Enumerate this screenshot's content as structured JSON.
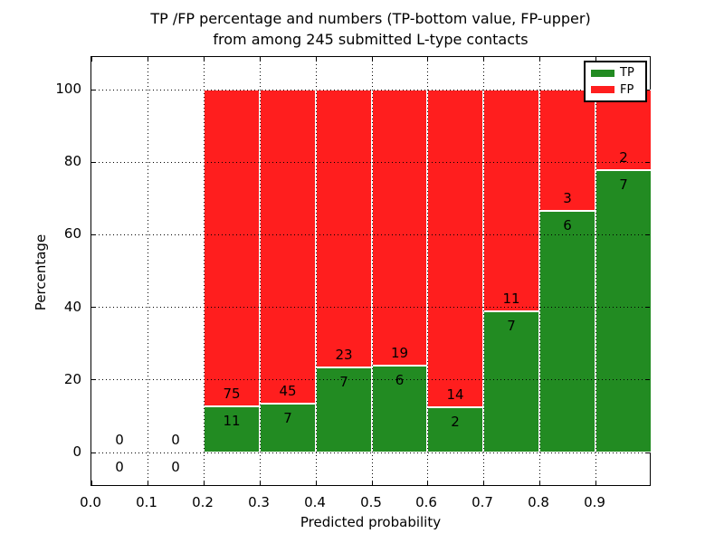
{
  "figure": {
    "title_line1": "TP /FP percentage and numbers (TP-bottom value, FP-upper)",
    "title_line2": "from among 245 submitted L-type contacts"
  },
  "chart_data": {
    "type": "bar",
    "stacked": true,
    "title": "TP /FP percentage and numbers (TP-bottom value, FP-upper) from among 245 submitted L-type contacts",
    "xlabel": "Predicted probability",
    "ylabel": "Percentage",
    "x_tick_labels": [
      "0.0",
      "0.1",
      "0.2",
      "0.3",
      "0.4",
      "0.5",
      "0.6",
      "0.7",
      "0.8",
      "0.9"
    ],
    "y_tick_values": [
      0,
      20,
      40,
      60,
      80,
      100
    ],
    "xlim": [
      0.0,
      1.0
    ],
    "ylim": [
      -9.5,
      109.3
    ],
    "grid": "dotted, both axes, drawn above bars",
    "legend_position": "upper right",
    "total_contacts": 245,
    "colors": {
      "tp": "#228b22",
      "fp": "#ff1e1e",
      "bar_edge": "#ffffff"
    },
    "legend": {
      "entries": [
        {
          "label": "TP",
          "color": "#228b22"
        },
        {
          "label": "FP",
          "color": "#ff1e1e"
        }
      ]
    },
    "bins": [
      {
        "range": [
          0.0,
          0.1
        ],
        "tp": 0,
        "fp": 0,
        "tp_pct": 0,
        "fp_pct": 0
      },
      {
        "range": [
          0.1,
          0.2
        ],
        "tp": 0,
        "fp": 0,
        "tp_pct": 0,
        "fp_pct": 0
      },
      {
        "range": [
          0.2,
          0.3
        ],
        "tp": 11,
        "fp": 75,
        "tp_pct": 12.79,
        "fp_pct": 87.21
      },
      {
        "range": [
          0.3,
          0.4
        ],
        "tp": 7,
        "fp": 45,
        "tp_pct": 13.46,
        "fp_pct": 86.54
      },
      {
        "range": [
          0.4,
          0.5
        ],
        "tp": 7,
        "fp": 23,
        "tp_pct": 23.33,
        "fp_pct": 76.67
      },
      {
        "range": [
          0.5,
          0.6
        ],
        "tp": 6,
        "fp": 19,
        "tp_pct": 24.0,
        "fp_pct": 76.0
      },
      {
        "range": [
          0.6,
          0.7
        ],
        "tp": 2,
        "fp": 14,
        "tp_pct": 12.5,
        "fp_pct": 87.5
      },
      {
        "range": [
          0.7,
          0.8
        ],
        "tp": 7,
        "fp": 11,
        "tp_pct": 38.89,
        "fp_pct": 61.11
      },
      {
        "range": [
          0.8,
          0.9
        ],
        "tp": 6,
        "fp": 3,
        "tp_pct": 66.67,
        "fp_pct": 33.33
      },
      {
        "range": [
          0.9,
          1.0
        ],
        "tp": 7,
        "fp": 2,
        "tp_pct": 77.78,
        "fp_pct": 22.22
      }
    ]
  }
}
